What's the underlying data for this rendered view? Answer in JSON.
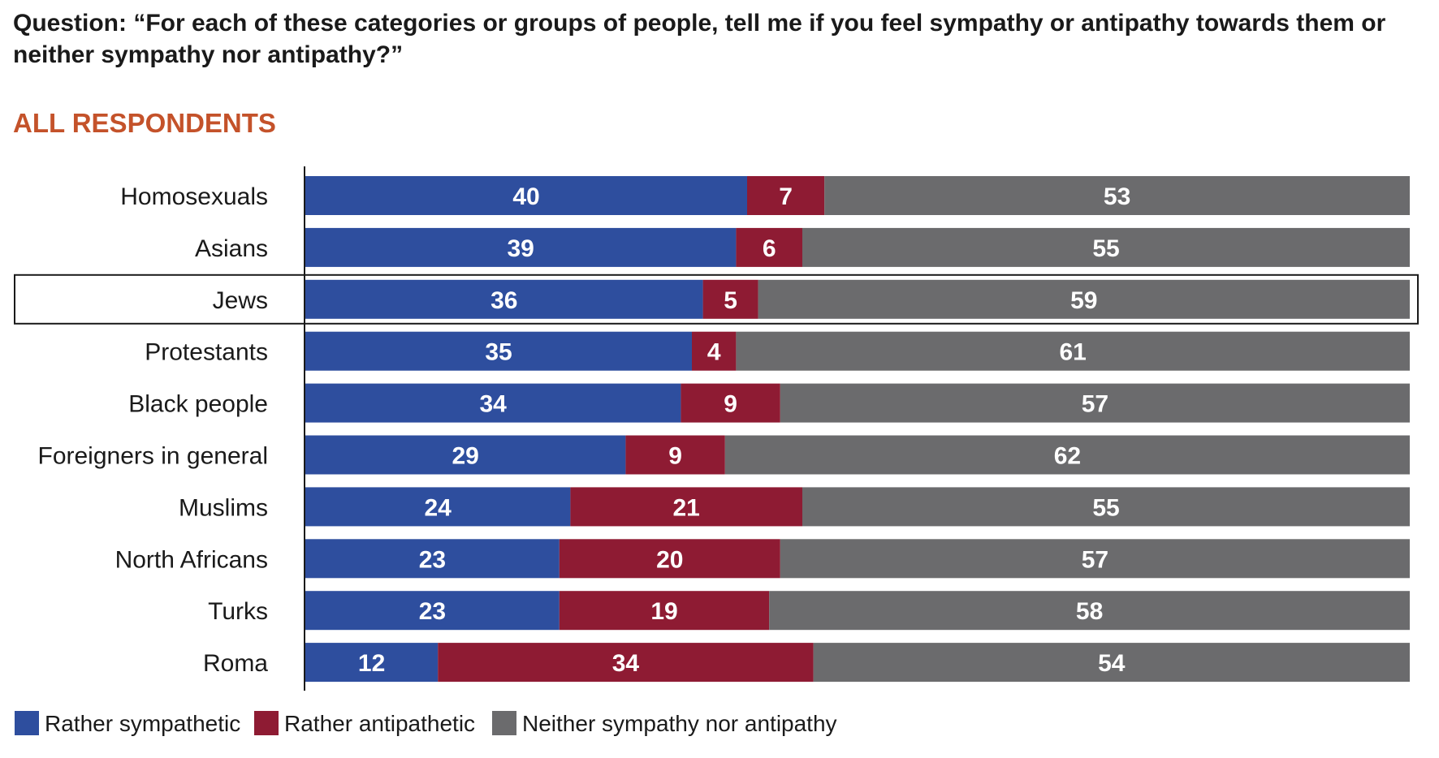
{
  "chart_data": {
    "type": "bar",
    "orientation": "horizontal",
    "stacked": true,
    "title_line1": "Question: “For each of these categories or groups of people, tell me if you feel sympathy or antipathy towards them or",
    "title_line2": "neither sympathy nor antipathy?”",
    "subtitle": "ALL RESPONDENTS",
    "categories": [
      "Homosexuals",
      "Asians",
      "Jews",
      "Protestants",
      "Black people",
      "Foreigners in general",
      "Muslims",
      "North Africans",
      "Turks",
      "Roma"
    ],
    "highlighted_category": "Jews",
    "xlim": [
      0,
      100
    ],
    "series": [
      {
        "name": "Rather sympathetic",
        "color": "#2e4e9e",
        "values": [
          40,
          39,
          36,
          35,
          34,
          29,
          24,
          23,
          23,
          12
        ]
      },
      {
        "name": "Rather antipathetic",
        "color": "#8e1b33",
        "values": [
          7,
          6,
          5,
          4,
          9,
          9,
          21,
          20,
          19,
          34
        ]
      },
      {
        "name": "Neither sympathy nor antipathy",
        "color": "#6b6b6d",
        "values": [
          53,
          55,
          59,
          61,
          57,
          62,
          55,
          57,
          58,
          54
        ]
      }
    ]
  }
}
